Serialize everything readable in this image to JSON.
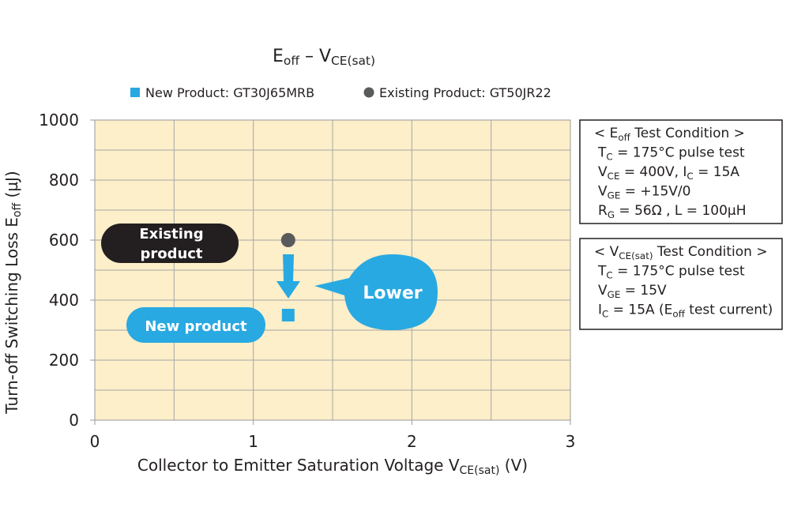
{
  "chart_data": {
    "type": "scatter",
    "title": [
      "E",
      "off",
      " – V",
      "CE(sat)"
    ],
    "xlabel": [
      "Collector to Emitter Saturation Voltage V",
      "CE(sat)",
      "  (V)"
    ],
    "ylabel": [
      "Turn-off Switching Loss E",
      "off",
      "  (µJ)"
    ],
    "xlim": [
      0,
      3
    ],
    "xticks": [
      0,
      1,
      2,
      3
    ],
    "xgrid": [
      0.5,
      1,
      1.5,
      2,
      2.5
    ],
    "ylim": [
      0,
      1000
    ],
    "yticks": [
      0,
      200,
      400,
      600,
      800,
      1000
    ],
    "ygrid": [
      100,
      200,
      300,
      400,
      500,
      600,
      700,
      800,
      900
    ],
    "plot_color": "#fcefc9",
    "series": [
      {
        "name": "New Product: GT30J65MRB",
        "color": "#29a9e1",
        "marker": "square",
        "x": [
          1.22
        ],
        "values": [
          350
        ]
      },
      {
        "name": "Existing Product: GT50JR22",
        "color": "#595a5c",
        "marker": "circle",
        "x": [
          1.22
        ],
        "values": [
          600
        ]
      }
    ],
    "annotations": {
      "existing": [
        "Existing",
        "product"
      ],
      "new": "New product",
      "lower": "Lower"
    },
    "conditions": [
      [
        [
          "< E",
          "off",
          " Test Condition >"
        ],
        [
          "T",
          "C",
          " =  175°C pulse test"
        ],
        [
          "V",
          "CE",
          " =  400V, I",
          "C",
          " = 15A"
        ],
        [
          "V",
          "GE",
          " =  +15V/0"
        ],
        [
          "R",
          "G",
          " = 56Ω , L = 100µH"
        ]
      ],
      [
        [
          "< V",
          "CE(sat)",
          " Test Condition >"
        ],
        [
          "T",
          "C",
          " =  175°C pulse test"
        ],
        [
          "V",
          "GE",
          " =  15V"
        ],
        [
          "I",
          "C",
          " =  15A (E",
          "off",
          " test current)"
        ]
      ]
    ]
  }
}
